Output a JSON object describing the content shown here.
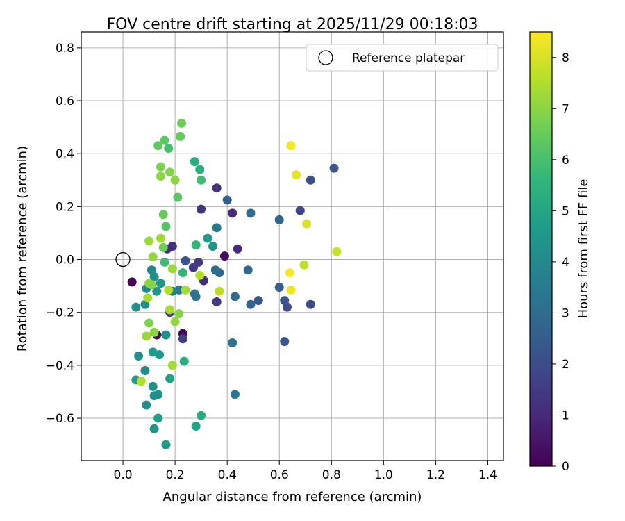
{
  "chart_data": {
    "type": "scatter",
    "title": "FOV centre drift starting at 2025/11/29 00:18:03",
    "xlabel": "Angular distance from reference (arcmin)",
    "ylabel": "Rotation from reference (arcmin)",
    "xlim": [
      -0.16,
      1.46
    ],
    "ylim": [
      -0.76,
      0.86
    ],
    "xticks": [
      0.0,
      0.2,
      0.4,
      0.6,
      0.8,
      1.0,
      1.2,
      1.4
    ],
    "xtick_labels": [
      "0.0",
      "0.2",
      "0.4",
      "0.6",
      "0.8",
      "1.0",
      "1.2",
      "1.4"
    ],
    "yticks": [
      -0.6,
      -0.4,
      -0.2,
      0.0,
      0.2,
      0.4,
      0.6,
      0.8
    ],
    "ytick_labels": [
      "−0.6",
      "−0.4",
      "−0.2",
      "0.0",
      "0.2",
      "0.4",
      "0.6",
      "0.8"
    ],
    "grid": true,
    "legend": {
      "label": "Reference platepar",
      "location": "upper right"
    },
    "reference_point": {
      "x": 0.0,
      "y": 0.0
    },
    "colorbar": {
      "label": "Hours from first FF file",
      "range": [
        0,
        8.5
      ],
      "ticks": [
        0,
        1,
        2,
        3,
        4,
        5,
        6,
        7,
        8
      ],
      "tick_labels": [
        "0",
        "1",
        "2",
        "3",
        "4",
        "5",
        "6",
        "7",
        "8"
      ],
      "colormap": "viridis",
      "colors": [
        "#440154",
        "#482878",
        "#3e4989",
        "#31688e",
        "#26828e",
        "#1f9e89",
        "#35b779",
        "#6ece58",
        "#b5de2b",
        "#fde725"
      ]
    },
    "points": [
      {
        "x": 0.035,
        "y": -0.085,
        "t": 0.1
      },
      {
        "x": 0.13,
        "y": -0.285,
        "t": 0.3
      },
      {
        "x": 0.23,
        "y": -0.28,
        "t": 0.2
      },
      {
        "x": 0.39,
        "y": 0.013,
        "t": 0.3
      },
      {
        "x": 0.19,
        "y": 0.05,
        "t": 1.2
      },
      {
        "x": 0.17,
        "y": 0.04,
        "t": 1.0
      },
      {
        "x": 0.44,
        "y": 0.04,
        "t": 1.0
      },
      {
        "x": 0.42,
        "y": 0.175,
        "t": 1.0
      },
      {
        "x": 0.36,
        "y": 0.27,
        "t": 1.2
      },
      {
        "x": 0.3,
        "y": 0.19,
        "t": 1.3
      },
      {
        "x": 0.31,
        "y": -0.08,
        "t": 1.1
      },
      {
        "x": 0.29,
        "y": -0.01,
        "t": 1.4
      },
      {
        "x": 0.27,
        "y": -0.03,
        "t": 1.5
      },
      {
        "x": 0.36,
        "y": -0.16,
        "t": 1.4
      },
      {
        "x": 0.23,
        "y": -0.3,
        "t": 1.6
      },
      {
        "x": 0.18,
        "y": -0.2,
        "t": 1.5
      },
      {
        "x": 0.24,
        "y": -0.005,
        "t": 2.2
      },
      {
        "x": 0.4,
        "y": 0.225,
        "t": 2.6
      },
      {
        "x": 0.49,
        "y": 0.175,
        "t": 2.9
      },
      {
        "x": 0.6,
        "y": 0.15,
        "t": 2.7
      },
      {
        "x": 0.68,
        "y": 0.185,
        "t": 1.8
      },
      {
        "x": 0.72,
        "y": 0.3,
        "t": 2.0
      },
      {
        "x": 0.81,
        "y": 0.345,
        "t": 2.2
      },
      {
        "x": 0.72,
        "y": -0.17,
        "t": 2.0
      },
      {
        "x": 0.63,
        "y": -0.18,
        "t": 2.0
      },
      {
        "x": 0.62,
        "y": -0.155,
        "t": 2.2
      },
      {
        "x": 0.6,
        "y": -0.105,
        "t": 2.5
      },
      {
        "x": 0.62,
        "y": -0.31,
        "t": 2.3
      },
      {
        "x": 0.52,
        "y": -0.155,
        "t": 2.4
      },
      {
        "x": 0.49,
        "y": -0.17,
        "t": 2.7
      },
      {
        "x": 0.48,
        "y": -0.04,
        "t": 2.8
      },
      {
        "x": 0.43,
        "y": -0.14,
        "t": 2.9
      },
      {
        "x": 0.42,
        "y": -0.315,
        "t": 3.2
      },
      {
        "x": 0.43,
        "y": -0.51,
        "t": 3.3
      },
      {
        "x": 0.37,
        "y": -0.05,
        "t": 2.8
      },
      {
        "x": 0.355,
        "y": -0.04,
        "t": 3.0
      },
      {
        "x": 0.36,
        "y": 0.12,
        "t": 3.4
      },
      {
        "x": 0.345,
        "y": 0.05,
        "t": 4.3
      },
      {
        "x": 0.325,
        "y": 0.08,
        "t": 4.6
      },
      {
        "x": 0.28,
        "y": -0.14,
        "t": 3.0
      },
      {
        "x": 0.275,
        "y": -0.13,
        "t": 3.2
      },
      {
        "x": 0.215,
        "y": -0.115,
        "t": 3.5
      },
      {
        "x": 0.19,
        "y": -0.12,
        "t": 3.8
      },
      {
        "x": 0.11,
        "y": -0.04,
        "t": 4.0
      },
      {
        "x": 0.12,
        "y": -0.065,
        "t": 4.2
      },
      {
        "x": 0.09,
        "y": -0.11,
        "t": 4.0
      },
      {
        "x": 0.13,
        "y": -0.12,
        "t": 4.4
      },
      {
        "x": 0.145,
        "y": -0.09,
        "t": 4.5
      },
      {
        "x": 0.05,
        "y": -0.18,
        "t": 4.1
      },
      {
        "x": 0.085,
        "y": -0.17,
        "t": 4.2
      },
      {
        "x": 0.06,
        "y": -0.365,
        "t": 4.3
      },
      {
        "x": 0.14,
        "y": -0.36,
        "t": 4.4
      },
      {
        "x": 0.115,
        "y": -0.35,
        "t": 4.6
      },
      {
        "x": 0.165,
        "y": -0.285,
        "t": 4.2
      },
      {
        "x": 0.085,
        "y": -0.42,
        "t": 4.1
      },
      {
        "x": 0.05,
        "y": -0.455,
        "t": 4.5
      },
      {
        "x": 0.115,
        "y": -0.48,
        "t": 4.3
      },
      {
        "x": 0.135,
        "y": -0.51,
        "t": 4.4
      },
      {
        "x": 0.12,
        "y": -0.515,
        "t": 4.3
      },
      {
        "x": 0.09,
        "y": -0.55,
        "t": 4.2
      },
      {
        "x": 0.135,
        "y": -0.6,
        "t": 4.8
      },
      {
        "x": 0.12,
        "y": -0.64,
        "t": 4.5
      },
      {
        "x": 0.165,
        "y": -0.7,
        "t": 4.7
      },
      {
        "x": 0.18,
        "y": -0.45,
        "t": 4.9
      },
      {
        "x": 0.235,
        "y": -0.385,
        "t": 5.2
      },
      {
        "x": 0.28,
        "y": -0.63,
        "t": 4.9
      },
      {
        "x": 0.3,
        "y": -0.59,
        "t": 5.2
      },
      {
        "x": 0.28,
        "y": 0.055,
        "t": 5.6
      },
      {
        "x": 0.275,
        "y": 0.37,
        "t": 5.3
      },
      {
        "x": 0.295,
        "y": 0.34,
        "t": 5.4
      },
      {
        "x": 0.3,
        "y": 0.3,
        "t": 5.8
      },
      {
        "x": 0.23,
        "y": -0.05,
        "t": 5.6
      },
      {
        "x": 0.16,
        "y": -0.01,
        "t": 5.8
      },
      {
        "x": 0.165,
        "y": 0.125,
        "t": 6.2
      },
      {
        "x": 0.21,
        "y": 0.235,
        "t": 6.3
      },
      {
        "x": 0.155,
        "y": 0.17,
        "t": 6.5
      },
      {
        "x": 0.16,
        "y": 0.45,
        "t": 6.3
      },
      {
        "x": 0.175,
        "y": 0.42,
        "t": 6.0
      },
      {
        "x": 0.135,
        "y": 0.43,
        "t": 6.4
      },
      {
        "x": 0.225,
        "y": 0.515,
        "t": 6.6
      },
      {
        "x": 0.22,
        "y": 0.465,
        "t": 6.5
      },
      {
        "x": 0.145,
        "y": 0.35,
        "t": 6.8
      },
      {
        "x": 0.18,
        "y": 0.33,
        "t": 6.9
      },
      {
        "x": 0.145,
        "y": 0.315,
        "t": 7.0
      },
      {
        "x": 0.2,
        "y": 0.3,
        "t": 7.0
      },
      {
        "x": 0.1,
        "y": 0.07,
        "t": 7.2
      },
      {
        "x": 0.145,
        "y": 0.08,
        "t": 7.3
      },
      {
        "x": 0.155,
        "y": 0.045,
        "t": 6.6
      },
      {
        "x": 0.115,
        "y": 0.01,
        "t": 7.1
      },
      {
        "x": 0.19,
        "y": -0.035,
        "t": 7.2
      },
      {
        "x": 0.295,
        "y": -0.06,
        "t": 7.5
      },
      {
        "x": 0.37,
        "y": -0.12,
        "t": 7.6
      },
      {
        "x": 0.1,
        "y": -0.09,
        "t": 7.1
      },
      {
        "x": 0.11,
        "y": -0.095,
        "t": 6.9
      },
      {
        "x": 0.095,
        "y": -0.145,
        "t": 7.4
      },
      {
        "x": 0.175,
        "y": -0.115,
        "t": 7.5
      },
      {
        "x": 0.24,
        "y": -0.115,
        "t": 7.3
      },
      {
        "x": 0.18,
        "y": -0.19,
        "t": 7.4
      },
      {
        "x": 0.215,
        "y": -0.205,
        "t": 6.9
      },
      {
        "x": 0.2,
        "y": -0.235,
        "t": 7.1
      },
      {
        "x": 0.1,
        "y": -0.24,
        "t": 6.8
      },
      {
        "x": 0.09,
        "y": -0.29,
        "t": 7.2
      },
      {
        "x": 0.12,
        "y": -0.275,
        "t": 7.0
      },
      {
        "x": 0.19,
        "y": -0.4,
        "t": 7.3
      },
      {
        "x": 0.07,
        "y": -0.46,
        "t": 7.5
      },
      {
        "x": 0.645,
        "y": 0.43,
        "t": 8.4
      },
      {
        "x": 0.665,
        "y": 0.32,
        "t": 8.2
      },
      {
        "x": 0.705,
        "y": 0.135,
        "t": 8.0
      },
      {
        "x": 0.82,
        "y": 0.03,
        "t": 7.8
      },
      {
        "x": 0.695,
        "y": -0.02,
        "t": 7.7
      },
      {
        "x": 0.64,
        "y": -0.05,
        "t": 8.4
      },
      {
        "x": 0.645,
        "y": -0.115,
        "t": 8.3
      }
    ]
  }
}
